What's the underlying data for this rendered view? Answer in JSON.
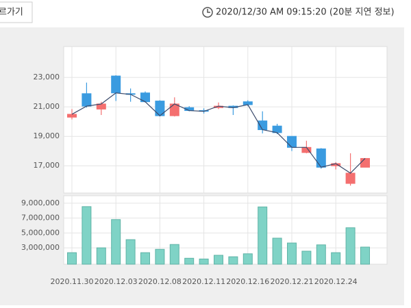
{
  "header": {
    "button": "르가기",
    "timestamp": "2020/12/30 AM 09:15:20 (20분 지연 정보)"
  },
  "chart_data": [
    {
      "type": "candlestick",
      "open": [
        20300,
        21900,
        20850,
        23100,
        21900,
        21950,
        21400,
        20400,
        20950,
        20750,
        20950,
        21050,
        21350,
        20050,
        19700,
        19000,
        17900,
        18150,
        17000,
        15800,
        16900
      ],
      "high": [
        20850,
        22650,
        21350,
        23150,
        22250,
        22050,
        21450,
        21650,
        21050,
        20900,
        21300,
        21100,
        21450,
        20700,
        19850,
        19000,
        18700,
        18200,
        17250,
        17850,
        17500
      ],
      "low": [
        20150,
        20950,
        20450,
        21400,
        21350,
        21300,
        20350,
        20350,
        20700,
        20550,
        20850,
        20450,
        21050,
        19200,
        19150,
        18000,
        17850,
        16800,
        16750,
        15650,
        16900
      ],
      "close": [
        20500,
        21050,
        21200,
        21950,
        21850,
        21350,
        20400,
        21200,
        20750,
        20700,
        21050,
        20950,
        21150,
        19450,
        19250,
        18250,
        18250,
        16900,
        17150,
        16500,
        17500
      ],
      "up_color": "#f46f6f",
      "down_color": "#3a9be0",
      "line_color": "#3b4a6b",
      "ylim": [
        15150,
        25100
      ],
      "yticks": [
        {
          "value": 17000,
          "label": "17,000"
        },
        {
          "value": 19000,
          "label": "19,000"
        },
        {
          "value": 21000,
          "label": "21,000"
        },
        {
          "value": 23000,
          "label": "23,000"
        }
      ],
      "grid": true
    },
    {
      "type": "bar",
      "categories": [
        "2020.11.30",
        null,
        null,
        "2020.12.03",
        null,
        null,
        "2020.12.08",
        null,
        null,
        "2020.12.11",
        null,
        null,
        "2020.12.16",
        null,
        null,
        "2020.12.21",
        null,
        null,
        "2020.12.24",
        null,
        null
      ],
      "values": [
        2350000,
        8540000,
        3000000,
        6800000,
        4100000,
        2350000,
        2800000,
        3450000,
        1600000,
        1500000,
        2000000,
        1800000,
        2200000,
        8500000,
        4300000,
        3650000,
        2550000,
        3400000,
        2350000,
        5700000,
        3100000
      ],
      "color": "#7fd3c6",
      "ylim": [
        800000,
        10000000
      ],
      "yticks": [
        {
          "value": 3000000,
          "label": "3,000,000"
        },
        {
          "value": 5000000,
          "label": "5,000,000"
        },
        {
          "value": 7000000,
          "label": "7,000,000"
        },
        {
          "value": 9000000,
          "label": "9,000,000"
        }
      ],
      "grid": true
    }
  ]
}
